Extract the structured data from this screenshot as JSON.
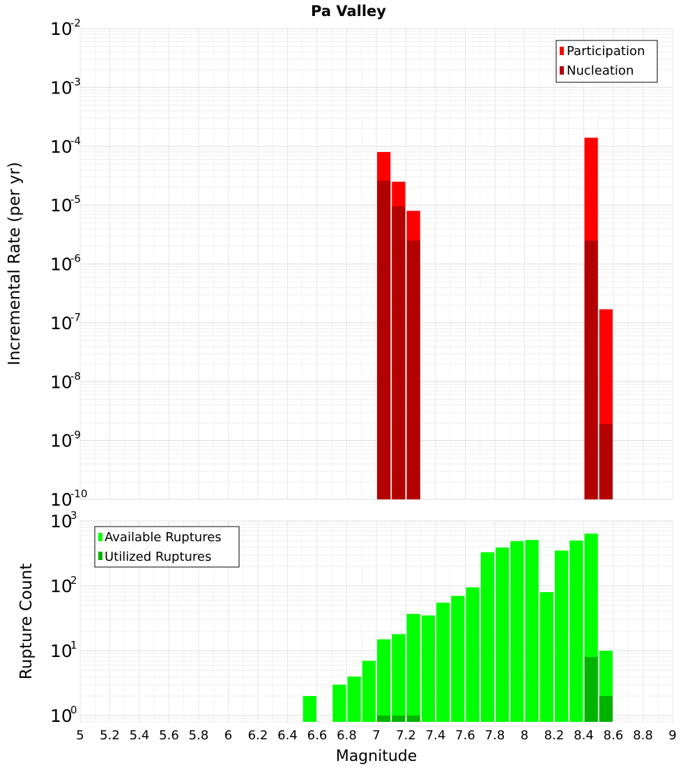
{
  "title": "Pa Valley",
  "xlabel": "Magnitude",
  "x_ticks": [
    "5",
    "5.2",
    "5.4",
    "5.6",
    "5.8",
    "6",
    "6.2",
    "6.4",
    "6.6",
    "6.8",
    "7",
    "7.2",
    "7.4",
    "7.6",
    "7.8",
    "8",
    "8.2",
    "8.4",
    "8.6",
    "8.8",
    "9"
  ],
  "colors": {
    "participation": "#ff0000",
    "nucleation": "#b30000",
    "available": "#00ff00",
    "utilized": "#00b300"
  },
  "chart_data": [
    {
      "type": "bar",
      "ylabel": "Incremental Rate (per yr)",
      "yscale": "log",
      "xlim": [
        5,
        9
      ],
      "ylim": [
        1e-10,
        0.01
      ],
      "y_tick_exponents": [
        "-10",
        "-9",
        "-8",
        "-7",
        "-6",
        "-5",
        "-4",
        "-3",
        "-2"
      ],
      "grid": true,
      "legend_position": "top-right",
      "bin_width": 0.1,
      "series": [
        {
          "name": "Participation",
          "x": [
            7.05,
            7.15,
            7.25,
            8.45,
            8.55
          ],
          "values": [
            8e-05,
            2.5e-05,
            8e-06,
            0.00014,
            1.7e-07
          ]
        },
        {
          "name": "Nucleation",
          "x": [
            7.05,
            7.15,
            7.25,
            8.45,
            8.55
          ],
          "values": [
            2.6e-05,
            9.5e-06,
            2.5e-06,
            2.5e-06,
            1.9e-09
          ]
        }
      ]
    },
    {
      "type": "bar",
      "ylabel": "Rupture Count",
      "yscale": "log",
      "xlim": [
        5,
        9
      ],
      "ylim": [
        0.8,
        1000
      ],
      "y_tick_exponents": [
        "0",
        "1",
        "2",
        "3"
      ],
      "grid": true,
      "legend_position": "top-left",
      "bin_width": 0.1,
      "series": [
        {
          "name": "Available Ruptures",
          "x": [
            6.55,
            6.75,
            6.85,
            6.95,
            7.05,
            7.15,
            7.25,
            7.35,
            7.45,
            7.55,
            7.65,
            7.75,
            7.85,
            7.95,
            8.05,
            8.15,
            8.25,
            8.35,
            8.45,
            8.55
          ],
          "values": [
            2,
            3,
            4,
            7,
            15,
            18,
            37,
            35,
            55,
            70,
            95,
            330,
            390,
            490,
            510,
            80,
            350,
            500,
            640,
            10
          ]
        },
        {
          "name": "Utilized Ruptures",
          "x": [
            7.05,
            7.15,
            7.25,
            8.45,
            8.55
          ],
          "values": [
            1,
            1,
            1,
            8,
            2
          ]
        }
      ]
    }
  ]
}
